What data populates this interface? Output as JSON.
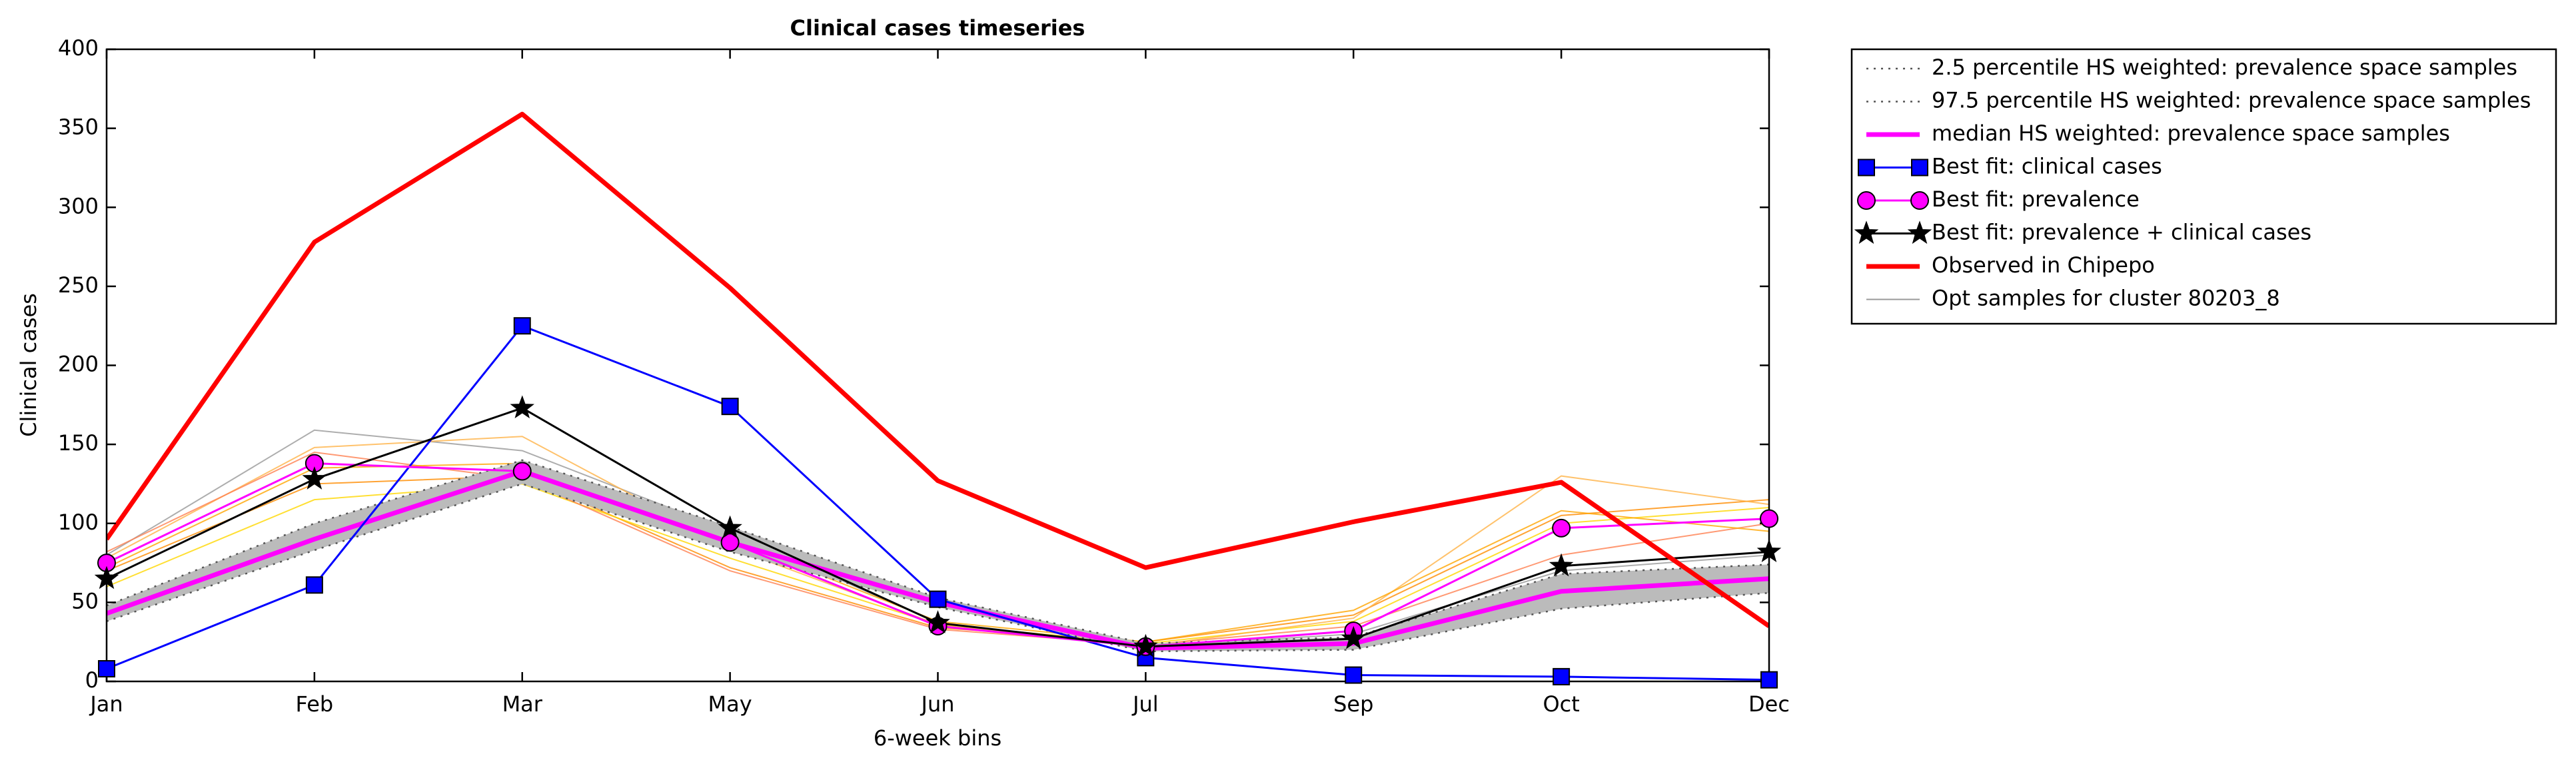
{
  "chart_data": {
    "type": "line",
    "title": "Clinical cases timeseries",
    "xlabel": "6-week bins",
    "ylabel": "Clinical cases",
    "categories": [
      "Jan",
      "Feb",
      "Mar",
      "May",
      "Jun",
      "Jul",
      "Sep",
      "Oct",
      "Dec"
    ],
    "ylim": [
      0,
      400
    ],
    "yticks": [
      0,
      50,
      100,
      150,
      200,
      250,
      300,
      350,
      400
    ],
    "legend": "outside upper right",
    "band_color": "#bbbbbb",
    "series": [
      {
        "name": "2.5 percentile HS weighted: prevalence space samples",
        "color": "#555555",
        "style": "dotted",
        "values": [
          38,
          83,
          125,
          82,
          47,
          19,
          20,
          46,
          56
        ]
      },
      {
        "name": "97.5 percentile HS weighted: prevalence space samples",
        "color": "#555555",
        "style": "dotted",
        "values": [
          48,
          100,
          140,
          98,
          53,
          24,
          28,
          68,
          74
        ]
      },
      {
        "name": "median HS weighted: prevalence space samples",
        "color": "#ff00ff",
        "style": "thick",
        "values": [
          43,
          90,
          133,
          88,
          50,
          21,
          24,
          57,
          65
        ]
      },
      {
        "name": "Best fit: clinical cases",
        "color": "#0000ff",
        "style": "solid",
        "marker": "square",
        "values": [
          8,
          61,
          225,
          174,
          52,
          15,
          4,
          3,
          1
        ]
      },
      {
        "name": "Best fit: prevalence",
        "color": "#ff00ff",
        "style": "solid",
        "marker": "circle",
        "values": [
          75,
          138,
          133,
          88,
          35,
          22,
          32,
          97,
          103
        ]
      },
      {
        "name": "Best fit: prevalence + clinical cases",
        "color": "#000000",
        "style": "solid",
        "marker": "star",
        "values": [
          65,
          128,
          173,
          97,
          37,
          22,
          27,
          73,
          82
        ]
      },
      {
        "name": "Observed in Chipepo",
        "color": "#ff0000",
        "style": "thick",
        "values": [
          90,
          278,
          359,
          249,
          127,
          72,
          101,
          126,
          35
        ]
      }
    ],
    "samples": {
      "name": "Opt samples for cluster 80203_8",
      "color": "#999999",
      "lines": [
        {
          "color": "#999999",
          "values": [
            80,
            159,
            146,
            95,
            37,
            22,
            30,
            70,
            80
          ]
        },
        {
          "color": "#ff8c00",
          "values": [
            70,
            125,
            130,
            72,
            34,
            25,
            42,
            105,
            115
          ]
        },
        {
          "color": "#ffd700",
          "values": [
            60,
            115,
            125,
            78,
            36,
            24,
            38,
            100,
            110
          ]
        },
        {
          "color": "#ffb347",
          "values": [
            78,
            148,
            155,
            85,
            36,
            22,
            40,
            130,
            112
          ]
        },
        {
          "color": "#ff7f50",
          "values": [
            82,
            145,
            128,
            70,
            33,
            23,
            35,
            80,
            100
          ]
        },
        {
          "color": "#ffa500",
          "values": [
            72,
            135,
            138,
            90,
            38,
            25,
            45,
            108,
            95
          ]
        }
      ]
    }
  }
}
